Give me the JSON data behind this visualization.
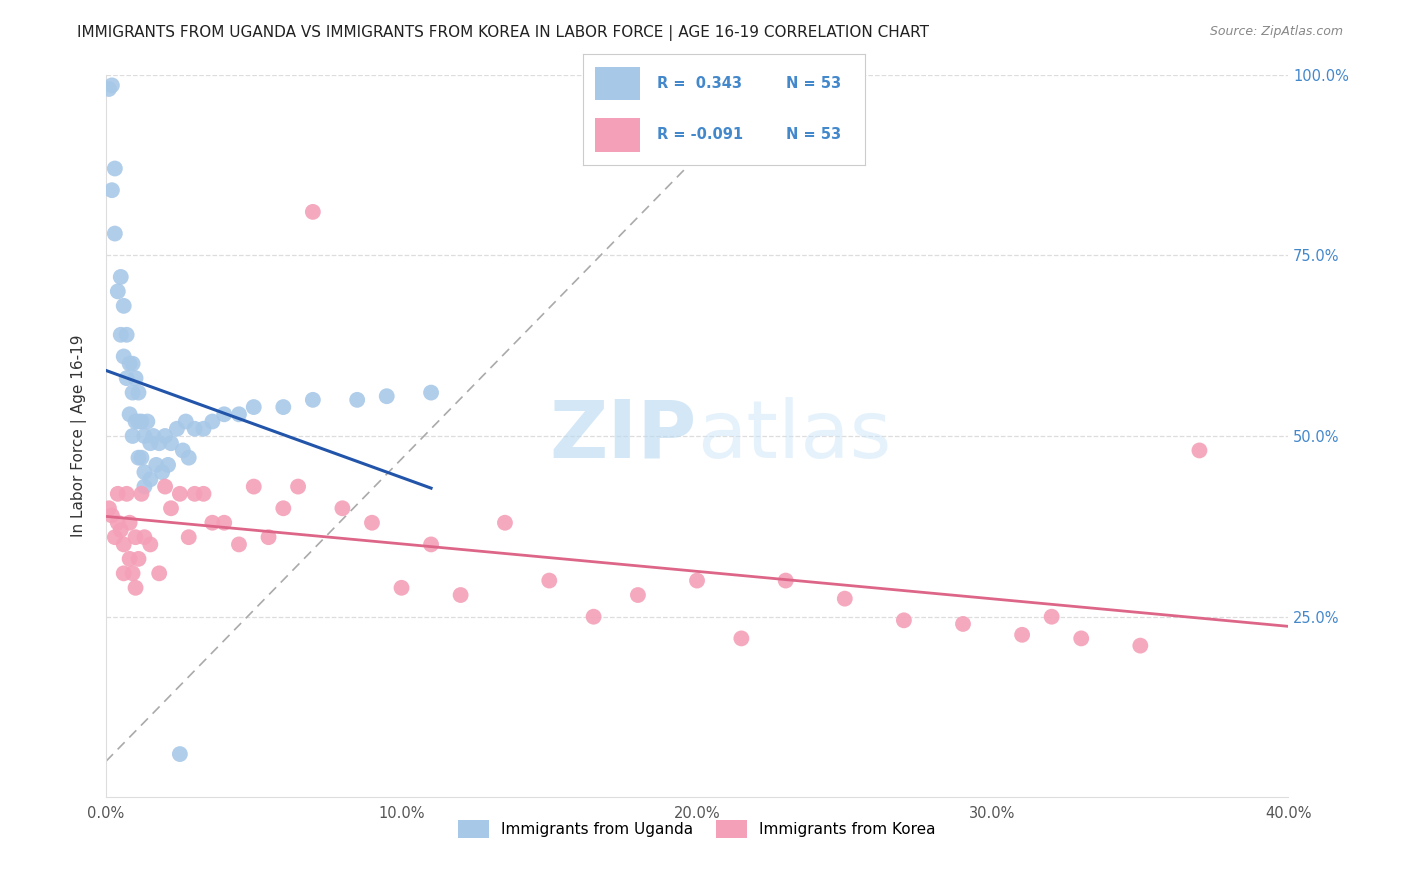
{
  "title": "IMMIGRANTS FROM UGANDA VS IMMIGRANTS FROM KOREA IN LABOR FORCE | AGE 16-19 CORRELATION CHART",
  "source": "Source: ZipAtlas.com",
  "ylabel": "In Labor Force | Age 16-19",
  "x_tick_labels": [
    "0.0%",
    "",
    "10.0%",
    "",
    "20.0%",
    "",
    "30.0%",
    "",
    "40.0%"
  ],
  "x_tick_vals": [
    0.0,
    0.05,
    0.1,
    0.15,
    0.2,
    0.25,
    0.3,
    0.35,
    0.4
  ],
  "y_tick_vals": [
    0.0,
    0.25,
    0.5,
    0.75,
    1.0
  ],
  "xlim": [
    0.0,
    0.4
  ],
  "ylim": [
    0.0,
    1.0
  ],
  "uganda_color": "#a8c8e8",
  "korea_color": "#f4a0b8",
  "uganda_line_color": "#2255aa",
  "korea_line_color": "#dd6688",
  "background_color": "#ffffff",
  "grid_color": "#dddddd",
  "tick_color": "#4488cc",
  "uganda_x": [
    0.001,
    0.002,
    0.002,
    0.003,
    0.003,
    0.004,
    0.005,
    0.005,
    0.006,
    0.006,
    0.007,
    0.007,
    0.008,
    0.008,
    0.009,
    0.009,
    0.009,
    0.01,
    0.01,
    0.011,
    0.011,
    0.011,
    0.012,
    0.012,
    0.013,
    0.013,
    0.014,
    0.015,
    0.015,
    0.016,
    0.017,
    0.018,
    0.019,
    0.02,
    0.021,
    0.022,
    0.024,
    0.026,
    0.027,
    0.028,
    0.03,
    0.033,
    0.036,
    0.04,
    0.045,
    0.05,
    0.06,
    0.07,
    0.085,
    0.095,
    0.11,
    0.025,
    0.013
  ],
  "uganda_y": [
    0.98,
    0.985,
    0.84,
    0.87,
    0.78,
    0.7,
    0.72,
    0.64,
    0.68,
    0.61,
    0.64,
    0.58,
    0.6,
    0.53,
    0.6,
    0.56,
    0.5,
    0.58,
    0.52,
    0.56,
    0.52,
    0.47,
    0.52,
    0.47,
    0.5,
    0.45,
    0.52,
    0.49,
    0.44,
    0.5,
    0.46,
    0.49,
    0.45,
    0.5,
    0.46,
    0.49,
    0.51,
    0.48,
    0.52,
    0.47,
    0.51,
    0.51,
    0.52,
    0.53,
    0.53,
    0.54,
    0.54,
    0.55,
    0.55,
    0.555,
    0.56,
    0.06,
    0.43
  ],
  "korea_x": [
    0.001,
    0.002,
    0.003,
    0.004,
    0.004,
    0.005,
    0.006,
    0.006,
    0.007,
    0.008,
    0.008,
    0.009,
    0.01,
    0.01,
    0.011,
    0.012,
    0.013,
    0.015,
    0.018,
    0.02,
    0.022,
    0.025,
    0.028,
    0.03,
    0.033,
    0.036,
    0.04,
    0.045,
    0.05,
    0.055,
    0.06,
    0.065,
    0.07,
    0.08,
    0.09,
    0.1,
    0.11,
    0.12,
    0.135,
    0.15,
    0.165,
    0.18,
    0.2,
    0.215,
    0.23,
    0.25,
    0.27,
    0.29,
    0.31,
    0.33,
    0.35,
    0.37,
    0.32
  ],
  "korea_y": [
    0.4,
    0.39,
    0.36,
    0.42,
    0.38,
    0.37,
    0.35,
    0.31,
    0.42,
    0.38,
    0.33,
    0.31,
    0.36,
    0.29,
    0.33,
    0.42,
    0.36,
    0.35,
    0.31,
    0.43,
    0.4,
    0.42,
    0.36,
    0.42,
    0.42,
    0.38,
    0.38,
    0.35,
    0.43,
    0.36,
    0.4,
    0.43,
    0.81,
    0.4,
    0.38,
    0.29,
    0.35,
    0.28,
    0.38,
    0.3,
    0.25,
    0.28,
    0.3,
    0.22,
    0.3,
    0.275,
    0.245,
    0.24,
    0.225,
    0.22,
    0.21,
    0.48,
    0.25
  ]
}
